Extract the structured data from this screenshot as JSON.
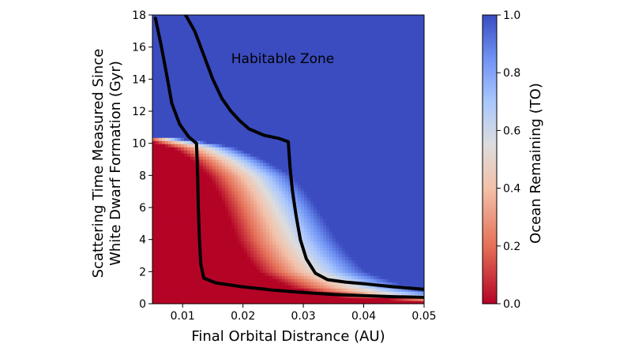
{
  "chart_data": {
    "type": "heatmap",
    "title": "",
    "xlabel": "Final Orbital Distrance (AU)",
    "ylabel_lines": [
      "Scattering Time Measured Since",
      "White Dwarf Formation (Gyr)"
    ],
    "xlim": [
      0.005,
      0.05
    ],
    "ylim": [
      0,
      18
    ],
    "x_ticks": [
      {
        "value": 0.01,
        "label": "0.01"
      },
      {
        "value": 0.02,
        "label": "0.02"
      },
      {
        "value": 0.03,
        "label": "0.03"
      },
      {
        "value": 0.04,
        "label": "0.04"
      },
      {
        "value": 0.05,
        "label": "0.05"
      }
    ],
    "y_ticks": [
      {
        "value": 0,
        "label": "0"
      },
      {
        "value": 2,
        "label": "2"
      },
      {
        "value": 4,
        "label": "4"
      },
      {
        "value": 6,
        "label": "6"
      },
      {
        "value": 8,
        "label": "8"
      },
      {
        "value": 10,
        "label": "10"
      },
      {
        "value": 12,
        "label": "12"
      },
      {
        "value": 14,
        "label": "14"
      },
      {
        "value": 16,
        "label": "16"
      },
      {
        "value": 18,
        "label": "18"
      }
    ],
    "grid": false,
    "colormap": {
      "name": "coolwarm_r",
      "low_color": "#b40426",
      "mid_color": "#dddddd",
      "high_color": "#3b4cc0",
      "range": [
        0,
        1
      ],
      "label": "Ocean Remaining (TO)",
      "ticks": [
        {
          "value": 0.0,
          "label": "0.0"
        },
        {
          "value": 0.2,
          "label": "0.2"
        },
        {
          "value": 0.4,
          "label": "0.4"
        },
        {
          "value": 0.6,
          "label": "0.6"
        },
        {
          "value": 0.8,
          "label": "0.8"
        },
        {
          "value": 1.0,
          "label": "1.0"
        }
      ]
    },
    "annotations": [
      {
        "text": "Habitable Zone",
        "x": 0.0285,
        "y": 15.3
      }
    ],
    "boundary_lines": [
      {
        "role": "inner",
        "color": "#000000",
        "points": [
          [
            0.0055,
            17.8
          ],
          [
            0.0065,
            16.0
          ],
          [
            0.0075,
            14.0
          ],
          [
            0.0082,
            12.5
          ],
          [
            0.0095,
            11.2
          ],
          [
            0.011,
            10.4
          ],
          [
            0.0123,
            10.0
          ],
          [
            0.0125,
            8.0
          ],
          [
            0.0126,
            6.0
          ],
          [
            0.0128,
            4.0
          ],
          [
            0.013,
            2.5
          ],
          [
            0.0135,
            1.6
          ],
          [
            0.0155,
            1.3
          ],
          [
            0.02,
            1.05
          ],
          [
            0.025,
            0.85
          ],
          [
            0.03,
            0.7
          ],
          [
            0.035,
            0.58
          ],
          [
            0.04,
            0.5
          ],
          [
            0.045,
            0.44
          ],
          [
            0.05,
            0.4
          ]
        ]
      },
      {
        "role": "outer",
        "color": "#000000",
        "points": [
          [
            0.0105,
            18.0
          ],
          [
            0.012,
            17.0
          ],
          [
            0.0135,
            15.5
          ],
          [
            0.015,
            14.0
          ],
          [
            0.0165,
            12.8
          ],
          [
            0.018,
            12.0
          ],
          [
            0.0195,
            11.4
          ],
          [
            0.021,
            10.9
          ],
          [
            0.0235,
            10.5
          ],
          [
            0.026,
            10.3
          ],
          [
            0.0275,
            10.1
          ],
          [
            0.0278,
            8.5
          ],
          [
            0.0282,
            7.0
          ],
          [
            0.0288,
            5.5
          ],
          [
            0.0295,
            4.0
          ],
          [
            0.0305,
            2.8
          ],
          [
            0.032,
            1.9
          ],
          [
            0.034,
            1.5
          ],
          [
            0.037,
            1.35
          ],
          [
            0.04,
            1.25
          ],
          [
            0.045,
            1.05
          ],
          [
            0.05,
            0.9
          ]
        ]
      }
    ]
  }
}
